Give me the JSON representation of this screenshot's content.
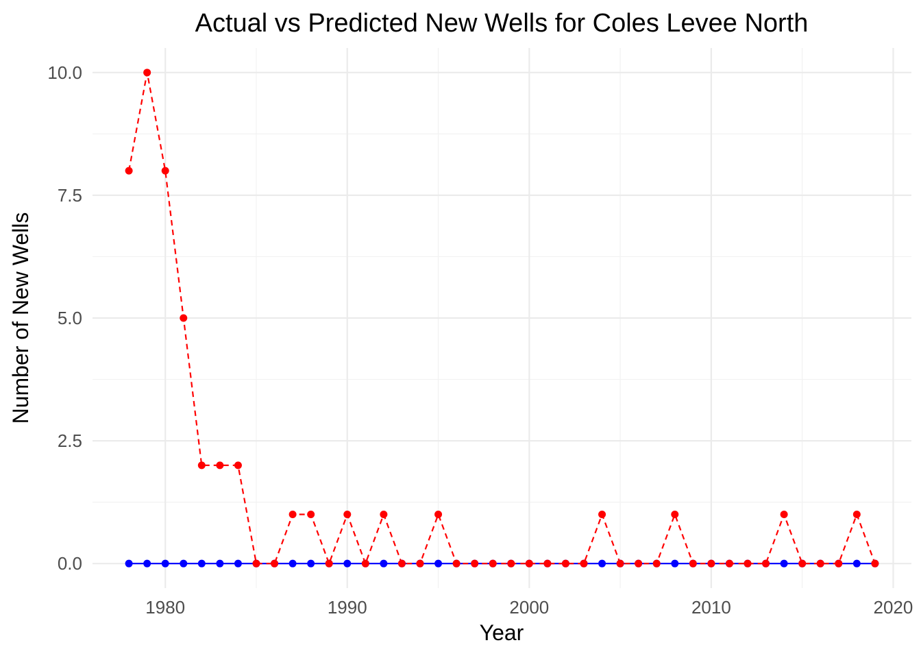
{
  "chart_data": {
    "type": "line",
    "title": "Actual vs Predicted New Wells for Coles Levee  North",
    "xlabel": "Year",
    "ylabel": "Number of New Wells",
    "xlim": [
      1976,
      2021
    ],
    "ylim": [
      -0.5,
      10.5
    ],
    "x_ticks": [
      1980,
      1990,
      2000,
      2010,
      2020
    ],
    "y_ticks": [
      0,
      2.5,
      5,
      7.5,
      10
    ],
    "y_tick_labels": [
      "0.0",
      "2.5",
      "5.0",
      "7.5",
      "10.0"
    ],
    "grid": true,
    "legend": "none",
    "x": [
      1978,
      1979,
      1980,
      1981,
      1982,
      1983,
      1984,
      1985,
      1986,
      1987,
      1988,
      1989,
      1990,
      1991,
      1992,
      1993,
      1994,
      1995,
      1996,
      1997,
      1998,
      1999,
      2000,
      2001,
      2002,
      2003,
      2004,
      2005,
      2006,
      2007,
      2008,
      2009,
      2010,
      2011,
      2012,
      2013,
      2014,
      2015,
      2016,
      2017,
      2018,
      2019
    ],
    "series": [
      {
        "color": "#0000ff",
        "line_style": "solid",
        "values": [
          0,
          0,
          0,
          0,
          0,
          0,
          0,
          0,
          0,
          0,
          0,
          0,
          0,
          0,
          0,
          0,
          0,
          0,
          0,
          0,
          0,
          0,
          0,
          0,
          0,
          0,
          0,
          0,
          0,
          0,
          0,
          0,
          0,
          0,
          0,
          0,
          0,
          0,
          0,
          0,
          0,
          0
        ]
      },
      {
        "color": "#ff0000",
        "line_style": "dashed",
        "values": [
          8,
          10,
          8,
          5,
          2,
          2,
          2,
          0,
          0,
          1,
          1,
          0,
          1,
          0,
          1,
          0,
          0,
          1,
          0,
          0,
          0,
          0,
          0,
          0,
          0,
          0,
          1,
          0,
          0,
          0,
          1,
          0,
          0,
          0,
          0,
          0,
          1,
          0,
          0,
          0,
          1,
          0
        ]
      }
    ]
  }
}
